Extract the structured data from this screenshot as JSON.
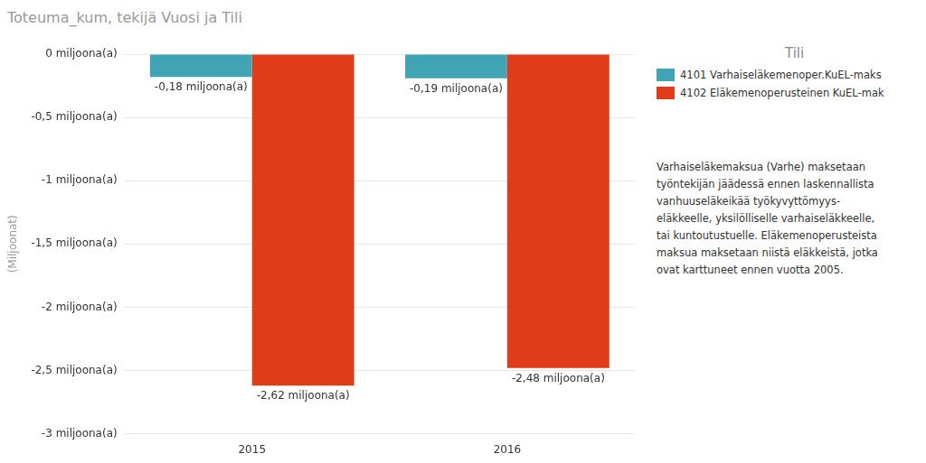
{
  "chart_data": {
    "type": "bar",
    "title": "Toteuma_kum, tekijä Vuosi ja Tili",
    "y_label": "(Miljoonat)",
    "legend_title": "Tili",
    "categories": [
      "2015",
      "2016"
    ],
    "series": [
      {
        "name": "4101 Varhaiseläkemenoper.KuEL-maks",
        "color": "#41a4b4",
        "values": [
          -0.18,
          -0.19
        ],
        "value_labels": [
          "-0,18 miljoona(a)",
          "-0,19 miljoona(a)"
        ]
      },
      {
        "name": "4102 Eläkemenoperusteinen KuEL-mak",
        "color": "#e03c1a",
        "values": [
          -2.62,
          -2.48
        ],
        "value_labels": [
          "-2,62 miljoona(a)",
          "-2,48 miljoona(a)"
        ]
      }
    ],
    "ylim": [
      -3,
      0
    ],
    "yticks": [
      {
        "value": 0,
        "label": "0 miljoona(a)"
      },
      {
        "value": -0.5,
        "label": "-0,5 miljoona(a)"
      },
      {
        "value": -1,
        "label": "-1 miljoona(a)"
      },
      {
        "value": -1.5,
        "label": "-1,5 miljoona(a)"
      },
      {
        "value": -2,
        "label": "-2 miljoona(a)"
      },
      {
        "value": -2.5,
        "label": "-2,5 miljoona(a)"
      },
      {
        "value": -3,
        "label": "-3 miljoona(a)"
      }
    ],
    "grid": true,
    "legend": "right",
    "data_labels": true,
    "annotation": [
      "Varhaiseläkemaksua (Varhe) maksetaan",
      "työntekijän jäädessä ennen laskennallista",
      "vanhuuseläkeikää työkyvyttömyys-",
      "eläkkeelle, yksilölliselle varhaiseläkkeelle,",
      "tai kuntoutustuelle. Eläkemenoperusteista",
      "maksua maksetaan niistä eläkkeistä, jotka",
      "ovat karttuneet ennen vuotta 2005."
    ]
  }
}
